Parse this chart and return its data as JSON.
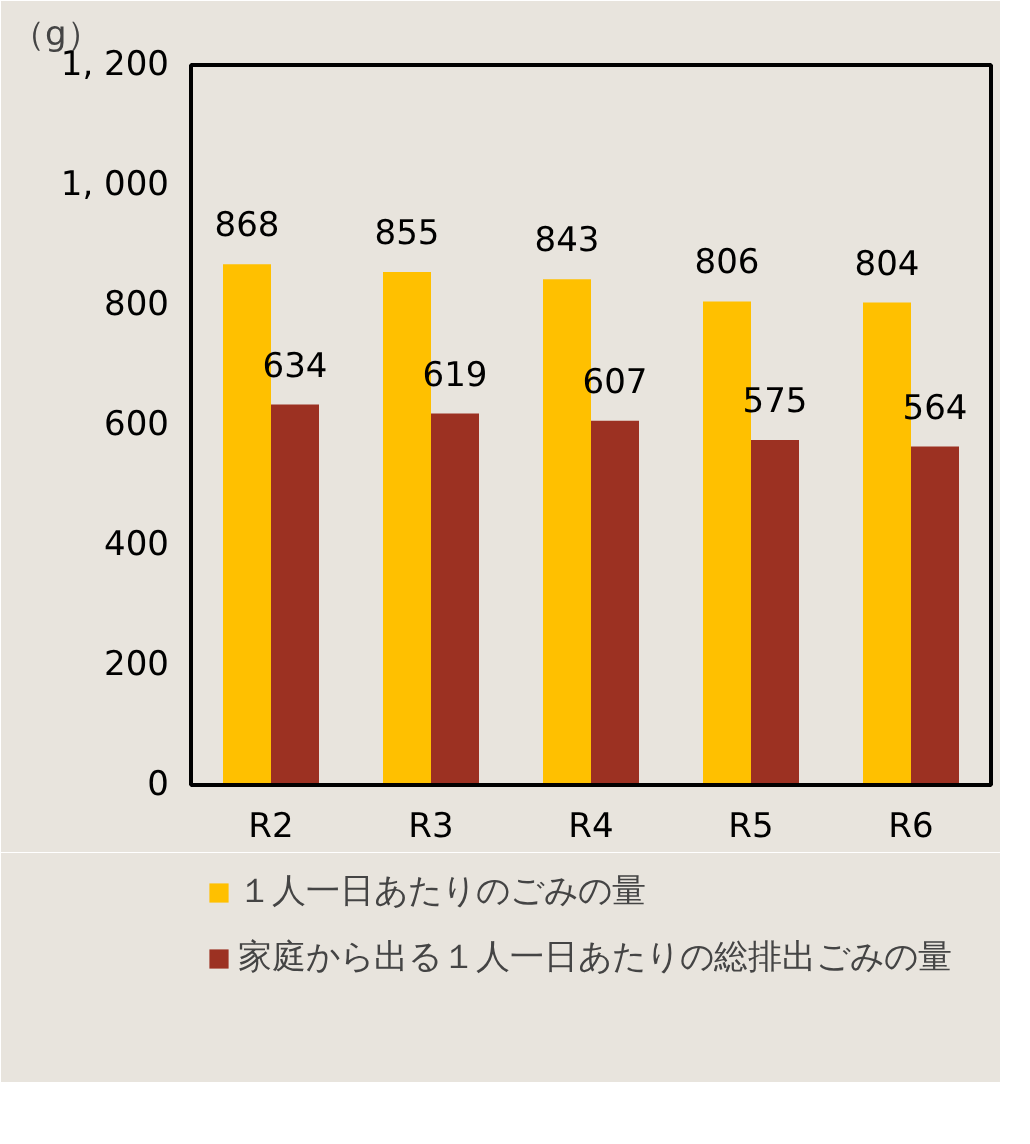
{
  "chart_data": {
    "type": "bar",
    "ylabel": "（g）",
    "categories": [
      "R2",
      "R3",
      "R4",
      "R5",
      "R6"
    ],
    "series": [
      {
        "name": "１人一日あたりのごみの量",
        "color": "#ffc000",
        "values": [
          868,
          855,
          843,
          806,
          804
        ]
      },
      {
        "name": "家庭から出る１人一日あたりの総排出ごみの量",
        "color": "#9c3122",
        "values": [
          634,
          619,
          607,
          575,
          564
        ]
      }
    ],
    "ylim": [
      0,
      1200
    ],
    "yticks": [
      0,
      200,
      400,
      600,
      800,
      {
        "value": 1000,
        "label": "1, 000"
      },
      {
        "value": 1200,
        "label": "1, 200"
      }
    ],
    "data_labels": true,
    "grid": false,
    "legend": "bottom"
  }
}
